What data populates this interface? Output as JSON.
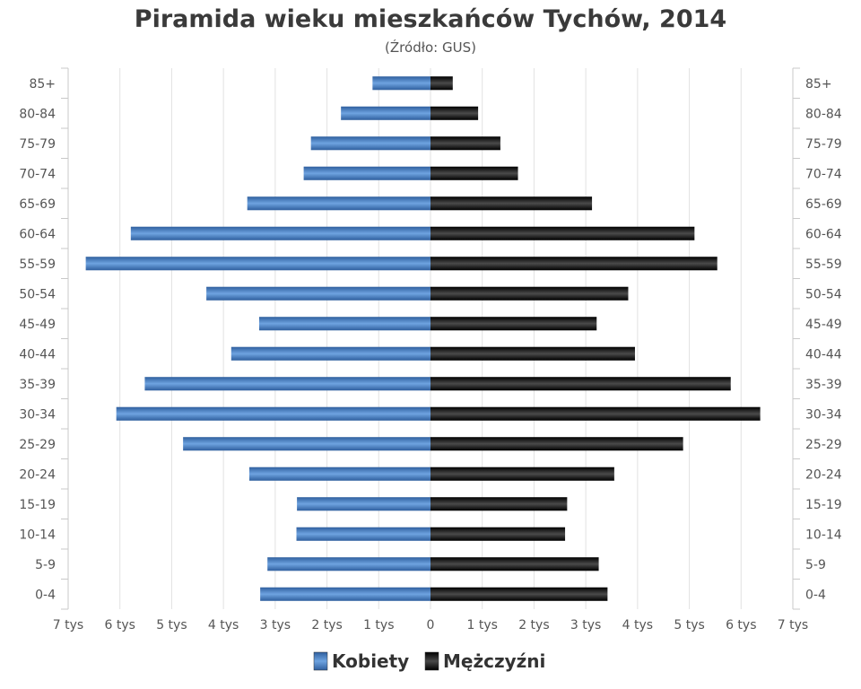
{
  "chart_data": {
    "type": "bar",
    "orientation": "horizontal-pyramid",
    "title": "Piramida wieku mieszkańców Tychów, 2014",
    "subtitle": "(Źródło: GUS)",
    "categories": [
      "85+",
      "80-84",
      "75-79",
      "70-74",
      "65-69",
      "60-64",
      "55-59",
      "50-54",
      "45-49",
      "40-44",
      "35-39",
      "30-34",
      "25-29",
      "20-24",
      "15-19",
      "10-14",
      "5-9",
      "0-4"
    ],
    "x_ticks": [
      "7 tys",
      "6 tys",
      "5 tys",
      "4 tys",
      "3 tys",
      "2 tys",
      "1 tys",
      "0",
      "1 tys",
      "2 tys",
      "3 tys",
      "4 tys",
      "5 tys",
      "6 tys",
      "7 tys"
    ],
    "xlim": [
      -7000,
      7000
    ],
    "grid": true,
    "legend": "bottom-center",
    "series": [
      {
        "name": "Kobiety",
        "side": "left",
        "color": "#4a7fc0",
        "values": [
          1120,
          1730,
          2310,
          2450,
          3540,
          5790,
          6660,
          4330,
          3310,
          3850,
          5520,
          6070,
          4780,
          3500,
          2580,
          2590,
          3150,
          3290
        ]
      },
      {
        "name": "Mężczyźni",
        "side": "right",
        "color": "#1a1a1a",
        "values": [
          430,
          920,
          1350,
          1690,
          3120,
          5100,
          5540,
          3820,
          3210,
          3950,
          5800,
          6370,
          4880,
          3550,
          2640,
          2600,
          3250,
          3420
        ]
      }
    ]
  }
}
